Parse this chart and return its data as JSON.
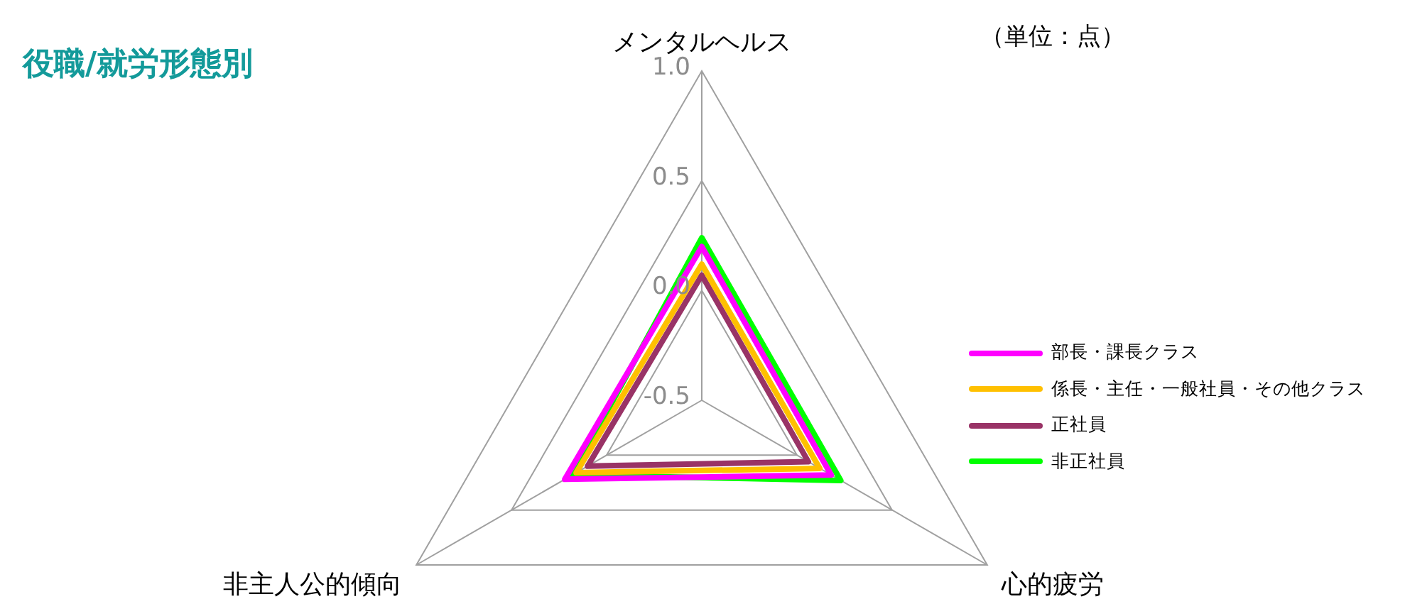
{
  "chart_data": {
    "type": "radar",
    "title": "役職/就労形態別",
    "annotations": [
      "（単位：点）"
    ],
    "categories": [
      "メンタルヘルス",
      "心的疲労",
      "非主人公的傾向"
    ],
    "ylim": [
      -0.5,
      1.0
    ],
    "yticks": [
      {
        "value": -0.5,
        "label": "-0.5"
      },
      {
        "value": 0,
        "label": "0.0"
      },
      {
        "value": 0.5,
        "label": "0.5"
      },
      {
        "value": 1.0,
        "label": "1.0"
      }
    ],
    "grid": true,
    "legend": "right",
    "marker": "none",
    "line_style": "solid",
    "series": [
      {
        "name": "部長・課長クラス",
        "color": "#ff00ff",
        "values": [
          0.2,
          0.18,
          0.22
        ]
      },
      {
        "name": "係長・主任・一般社員・その他クラス",
        "color": "#ffc000",
        "values": [
          0.12,
          0.12,
          0.16
        ]
      },
      {
        "name": "正社員",
        "color": "#993366",
        "values": [
          0.07,
          0.06,
          0.1
        ]
      },
      {
        "name": "非正社員",
        "color": "#00ff00",
        "values": [
          0.24,
          0.23,
          0.18
        ]
      }
    ]
  }
}
